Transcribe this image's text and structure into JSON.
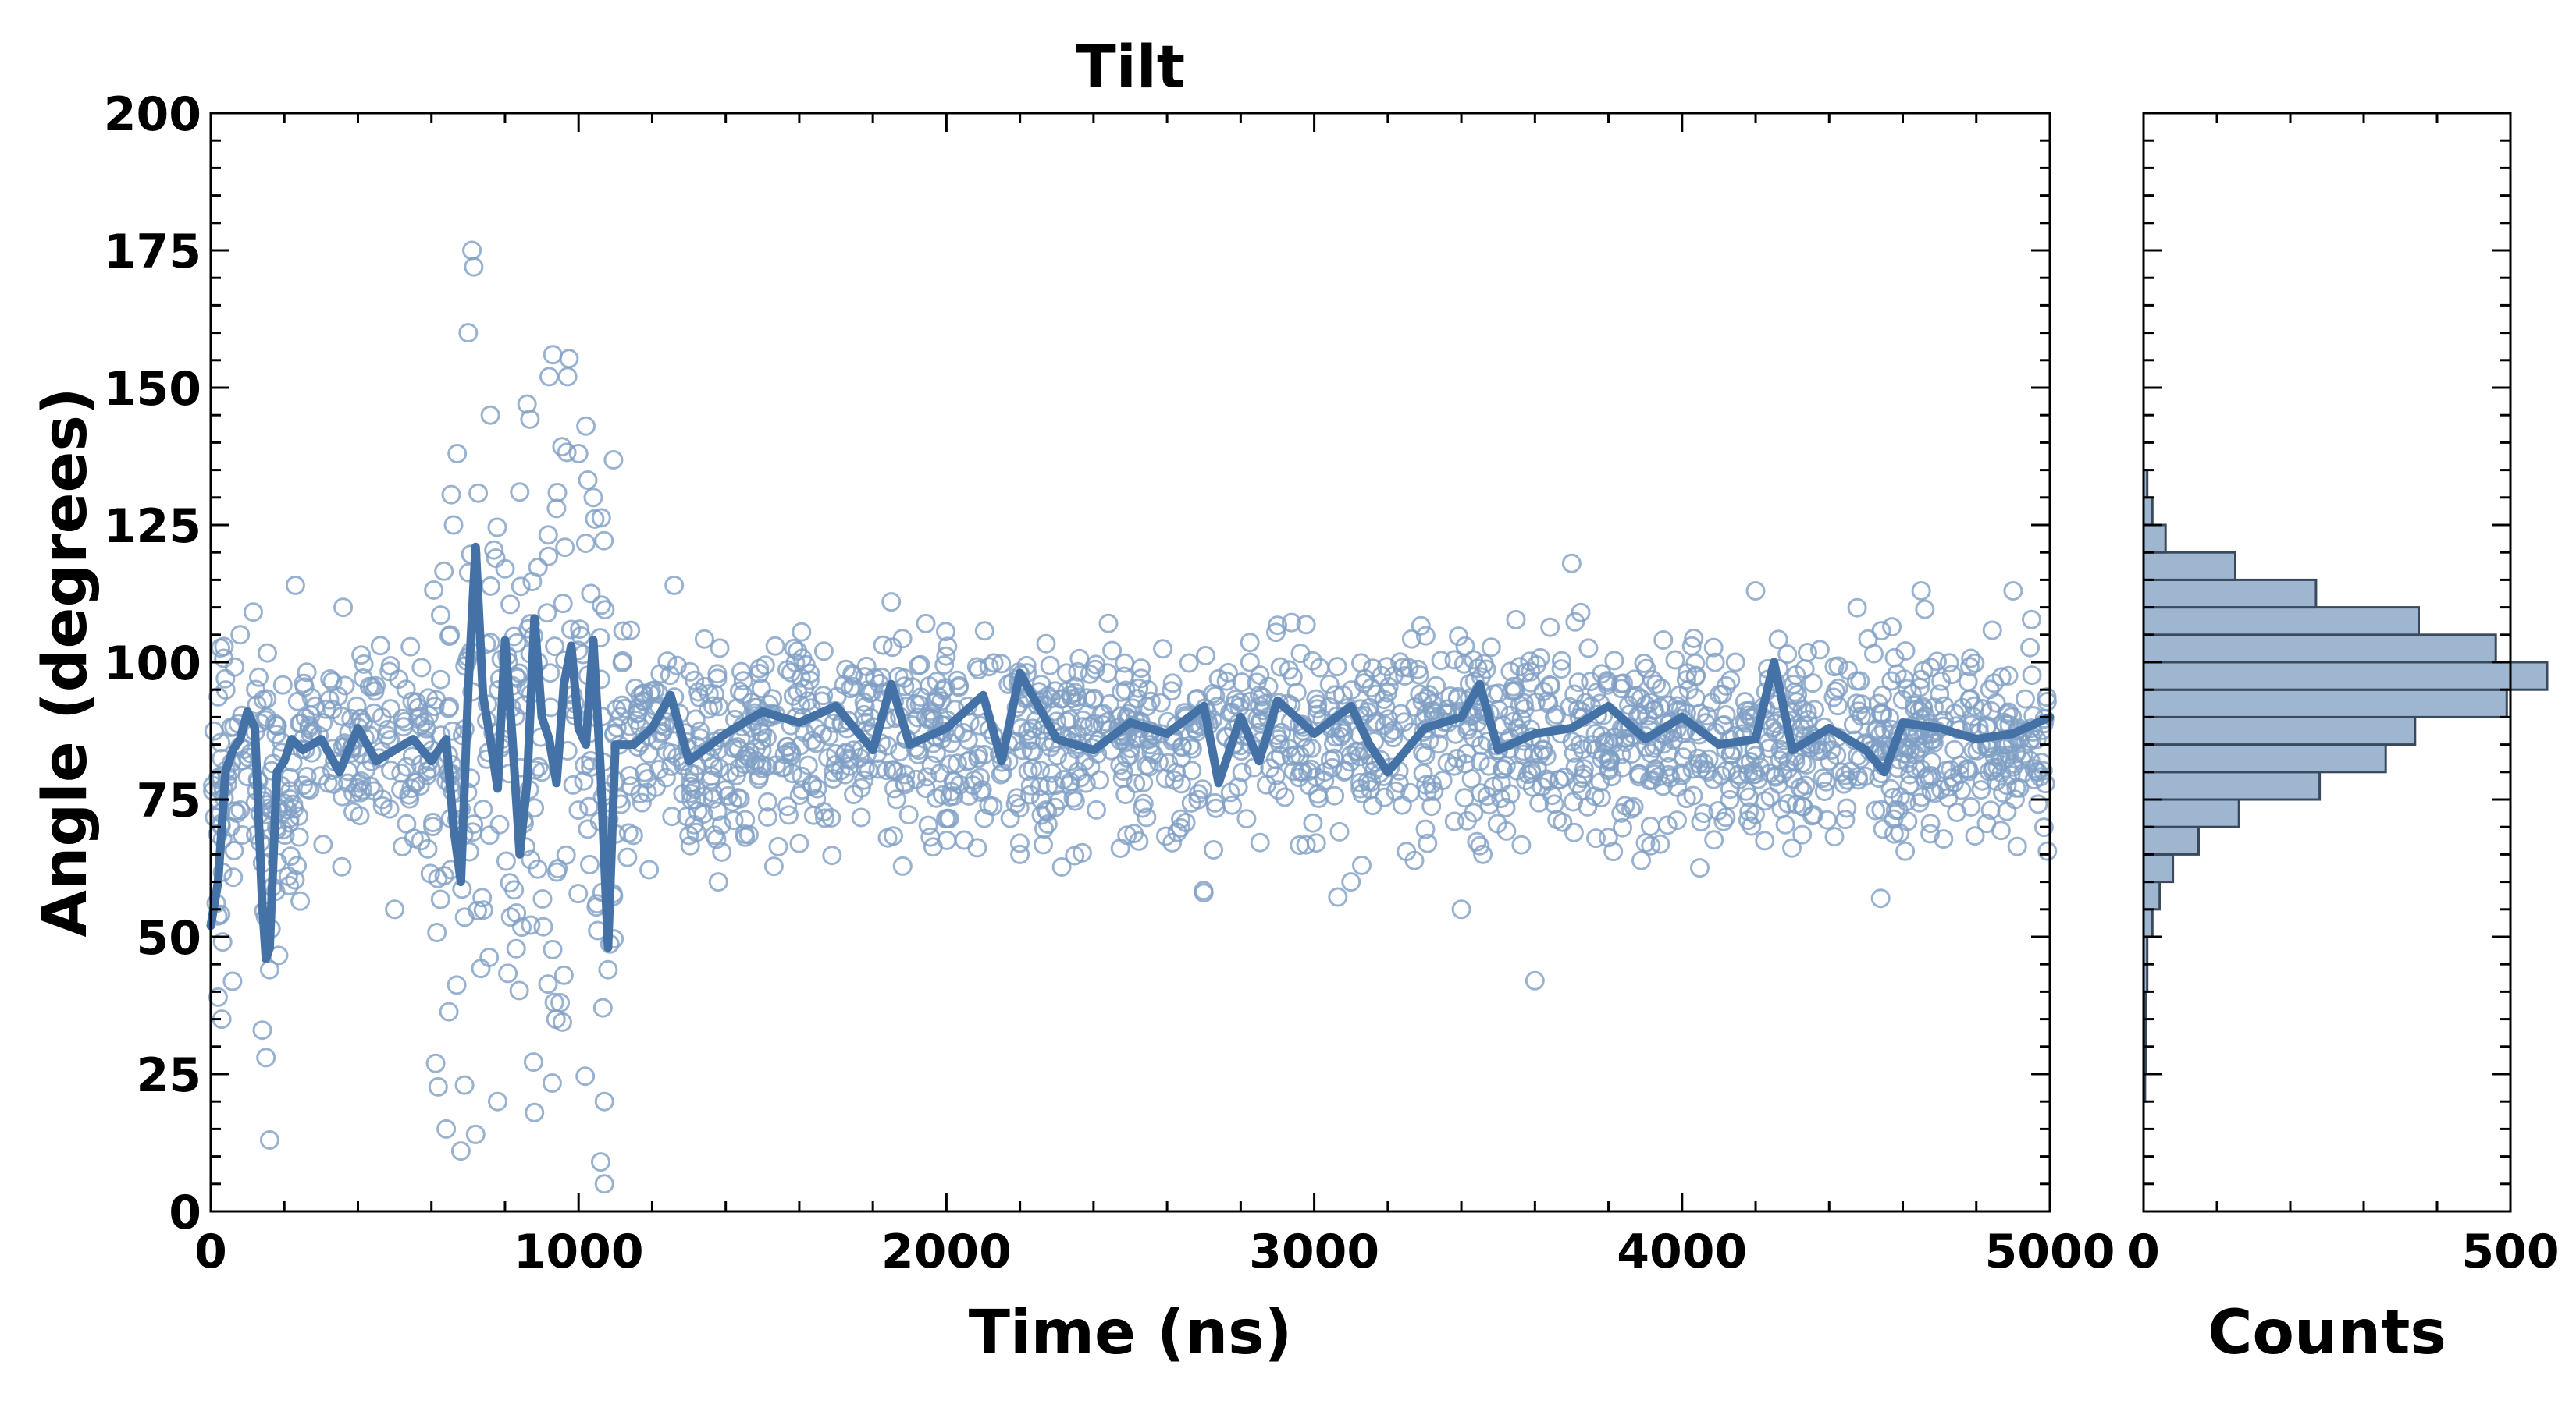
{
  "chart_data": [
    {
      "type": "scatter",
      "title": "Tilt",
      "xlabel": "Time (ns)",
      "ylabel": "Angle (degrees)",
      "xlim": [
        0,
        5000
      ],
      "ylim": [
        0,
        200
      ],
      "x_ticks": [
        0,
        1000,
        2000,
        3000,
        4000,
        5000
      ],
      "y_ticks": [
        0,
        25,
        50,
        75,
        100,
        125,
        150,
        175,
        200
      ],
      "grid": false,
      "legend": "none",
      "colors": {
        "points": "#7f9fc4",
        "line": "#4472a6"
      },
      "series": [
        {
          "kind": "scatter-points",
          "description_of_distribution": "dense cloud of open circles approx. 60-110 degrees across 0-5000 ns; wide spread 5-175 degrees between ~600 and ~1100 ns",
          "x": [
            20,
            30,
            40,
            80,
            140,
            150,
            160,
            160,
            230,
            360,
            500,
            640,
            660,
            670,
            680,
            690,
            700,
            710,
            715,
            720,
            760,
            780,
            800,
            840,
            860,
            880,
            890,
            900,
            920,
            930,
            940,
            950,
            960,
            970,
            1000,
            1020,
            1040,
            1050,
            1060,
            1070,
            1070,
            1080,
            1260,
            1380,
            1600,
            1850,
            2200,
            2700,
            3100,
            3400,
            3600,
            3700,
            4200,
            4540,
            4650,
            4900
          ],
          "y": [
            39,
            35,
            97,
            105,
            33,
            28,
            44,
            13,
            114,
            110,
            55,
            15,
            125,
            138,
            11,
            23,
            160,
            175,
            172,
            14,
            145,
            20,
            117,
            131,
            147,
            18,
            100,
            80,
            152,
            156,
            128,
            38,
            43,
            152,
            138,
            143,
            130,
            56,
            9,
            5,
            20,
            44,
            114,
            60,
            67,
            111,
            65,
            58,
            60,
            55,
            42,
            118,
            113,
            57,
            113,
            113
          ]
        },
        {
          "kind": "running-average-line",
          "x": [
            0,
            20,
            40,
            60,
            80,
            100,
            120,
            140,
            150,
            160,
            180,
            200,
            220,
            250,
            300,
            350,
            400,
            450,
            500,
            550,
            600,
            620,
            640,
            660,
            680,
            700,
            720,
            740,
            760,
            780,
            800,
            820,
            840,
            860,
            880,
            900,
            920,
            940,
            960,
            980,
            1000,
            1020,
            1040,
            1060,
            1080,
            1100,
            1150,
            1200,
            1250,
            1300,
            1400,
            1500,
            1600,
            1700,
            1800,
            1850,
            1900,
            2000,
            2100,
            2150,
            2200,
            2300,
            2400,
            2500,
            2600,
            2700,
            2740,
            2800,
            2850,
            2900,
            3000,
            3100,
            3150,
            3200,
            3300,
            3400,
            3450,
            3500,
            3600,
            3700,
            3800,
            3900,
            4000,
            4100,
            4200,
            4250,
            4300,
            4400,
            4500,
            4550,
            4600,
            4700,
            4800,
            4900,
            5000
          ],
          "y": [
            52,
            60,
            80,
            84,
            86,
            91,
            88,
            56,
            46,
            48,
            80,
            82,
            86,
            84,
            86,
            80,
            88,
            82,
            84,
            86,
            82,
            84,
            86,
            70,
            60,
            95,
            121,
            94,
            86,
            77,
            104,
            86,
            65,
            78,
            108,
            90,
            86,
            78,
            96,
            103,
            88,
            85,
            104,
            80,
            48,
            85,
            85,
            88,
            94,
            82,
            87,
            91,
            89,
            92,
            84,
            96,
            85,
            88,
            94,
            82,
            98,
            86,
            84,
            89,
            87,
            92,
            78,
            90,
            82,
            93,
            87,
            92,
            85,
            80,
            88,
            90,
            96,
            84,
            87,
            88,
            92,
            86,
            90,
            85,
            86,
            100,
            84,
            88,
            84,
            80,
            89,
            88,
            86,
            87,
            90
          ]
        }
      ]
    },
    {
      "type": "bar",
      "orientation": "horizontal",
      "title": "",
      "xlabel": "Counts",
      "ylabel": "",
      "xlim": [
        0,
        500
      ],
      "ylim": [
        0,
        200
      ],
      "x_ticks": [
        0,
        500
      ],
      "grid": false,
      "legend": "none",
      "colors": {
        "fill": "#9fb6d1",
        "edge": "#3a4a5c"
      },
      "bin_width": 5,
      "bins": [
        20,
        25,
        30,
        35,
        40,
        45,
        50,
        55,
        60,
        65,
        70,
        75,
        80,
        85,
        90,
        95,
        100,
        105,
        110,
        115,
        120,
        125,
        130
      ],
      "counts": [
        2,
        3,
        3,
        3,
        5,
        5,
        12,
        22,
        40,
        75,
        130,
        240,
        330,
        370,
        495,
        550,
        480,
        375,
        235,
        125,
        30,
        12,
        5
      ]
    }
  ]
}
